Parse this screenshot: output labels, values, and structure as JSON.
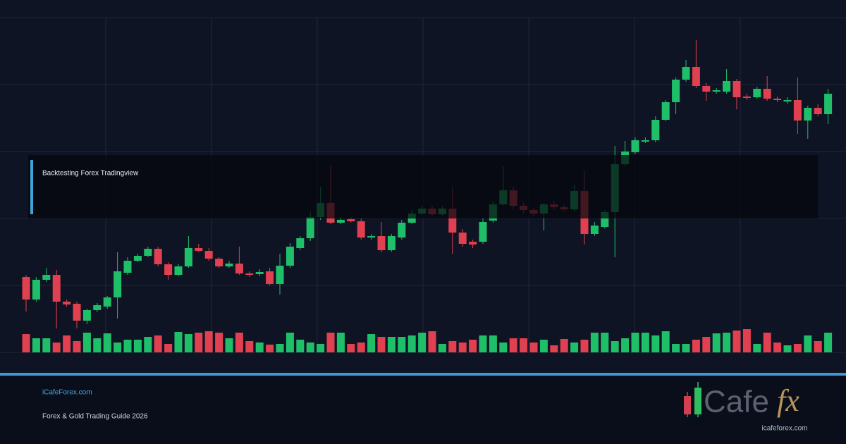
{
  "banner": {
    "title": "Backtesting Forex Tradingview"
  },
  "footer": {
    "site": "iCafeForex.com",
    "subtitle": "Forex & Gold Trading Guide 2026",
    "logo_main": "Cafe",
    "logo_accent": "fx",
    "logo_url": "icafeforex.com"
  },
  "chart_data": {
    "type": "candlestick",
    "up_color": "#1fbf6a",
    "down_color": "#e0404f",
    "ylim": [
      0,
      475
    ],
    "volume_lim": [
      0,
      100
    ],
    "open": [
      107,
      75,
      103,
      110,
      72,
      69,
      45,
      60,
      65,
      78,
      113,
      130,
      137,
      147,
      125,
      110,
      122,
      148,
      144,
      133,
      122,
      126,
      112,
      111,
      115,
      97,
      123,
      148,
      162,
      192,
      212,
      184,
      189,
      186,
      163,
      165,
      145,
      163,
      184,
      197,
      204,
      196,
      204,
      170,
      157,
      157,
      187,
      210,
      230,
      208,
      202,
      197,
      210,
      206,
      203,
      229,
      168,
      178,
      199,
      267,
      284,
      299,
      301,
      330,
      355,
      387,
      405,
      378,
      370,
      370,
      385,
      363,
      362,
      374,
      360,
      356,
      358,
      329,
      347,
      338
    ],
    "high": [
      110,
      107,
      120,
      117,
      75,
      72,
      62,
      70,
      80,
      142,
      135,
      140,
      150,
      150,
      128,
      125,
      165,
      154,
      148,
      135,
      130,
      150,
      115,
      118,
      120,
      140,
      155,
      165,
      200,
      235,
      264,
      192,
      192,
      190,
      168,
      185,
      168,
      188,
      202,
      208,
      208,
      208,
      235,
      175,
      160,
      190,
      215,
      264,
      235,
      212,
      205,
      212,
      215,
      210,
      238,
      258,
      185,
      202,
      293,
      300,
      305,
      305,
      335,
      358,
      390,
      415,
      443,
      382,
      375,
      402,
      388,
      367,
      377,
      392,
      363,
      362,
      390,
      350,
      352,
      374
    ],
    "low": [
      58,
      72,
      100,
      34,
      65,
      34,
      40,
      57,
      62,
      48,
      110,
      128,
      135,
      122,
      103,
      108,
      120,
      142,
      130,
      120,
      120,
      110,
      107,
      108,
      95,
      82,
      120,
      145,
      158,
      188,
      182,
      182,
      184,
      160,
      160,
      142,
      143,
      160,
      182,
      195,
      194,
      194,
      140,
      150,
      148,
      154,
      184,
      208,
      204,
      198,
      194,
      173,
      202,
      200,
      200,
      153,
      165,
      176,
      135,
      264,
      282,
      297,
      298,
      328,
      338,
      384,
      375,
      357,
      367,
      367,
      345,
      358,
      360,
      357,
      355,
      353,
      310,
      303,
      335,
      324
    ],
    "close": [
      75,
      103,
      110,
      72,
      68,
      45,
      60,
      67,
      78,
      115,
      130,
      137,
      147,
      125,
      110,
      122,
      148,
      144,
      133,
      122,
      126,
      112,
      110,
      114,
      97,
      123,
      150,
      162,
      192,
      212,
      184,
      188,
      186,
      163,
      165,
      145,
      165,
      184,
      197,
      204,
      196,
      204,
      170,
      154,
      153,
      185,
      210,
      230,
      208,
      202,
      197,
      210,
      206,
      203,
      229,
      168,
      180,
      199,
      267,
      285,
      301,
      301,
      330,
      355,
      387,
      405,
      378,
      370,
      372,
      385,
      362,
      361,
      374,
      360,
      358,
      358,
      329,
      347,
      338,
      367
    ],
    "volume": [
      26,
      20,
      20,
      14,
      24,
      16,
      28,
      20,
      27,
      14,
      18,
      18,
      22,
      24,
      12,
      29,
      26,
      28,
      30,
      28,
      20,
      28,
      16,
      14,
      11,
      12,
      28,
      18,
      14,
      12,
      28,
      28,
      12,
      14,
      26,
      22,
      22,
      22,
      24,
      28,
      30,
      12,
      16,
      14,
      18,
      24,
      24,
      14,
      20,
      20,
      14,
      18,
      10,
      19,
      14,
      18,
      28,
      28,
      16,
      20,
      28,
      28,
      24,
      30,
      12,
      12,
      18,
      22,
      27,
      28,
      31,
      33,
      12,
      28,
      14,
      10,
      12,
      24,
      16,
      28
    ]
  }
}
